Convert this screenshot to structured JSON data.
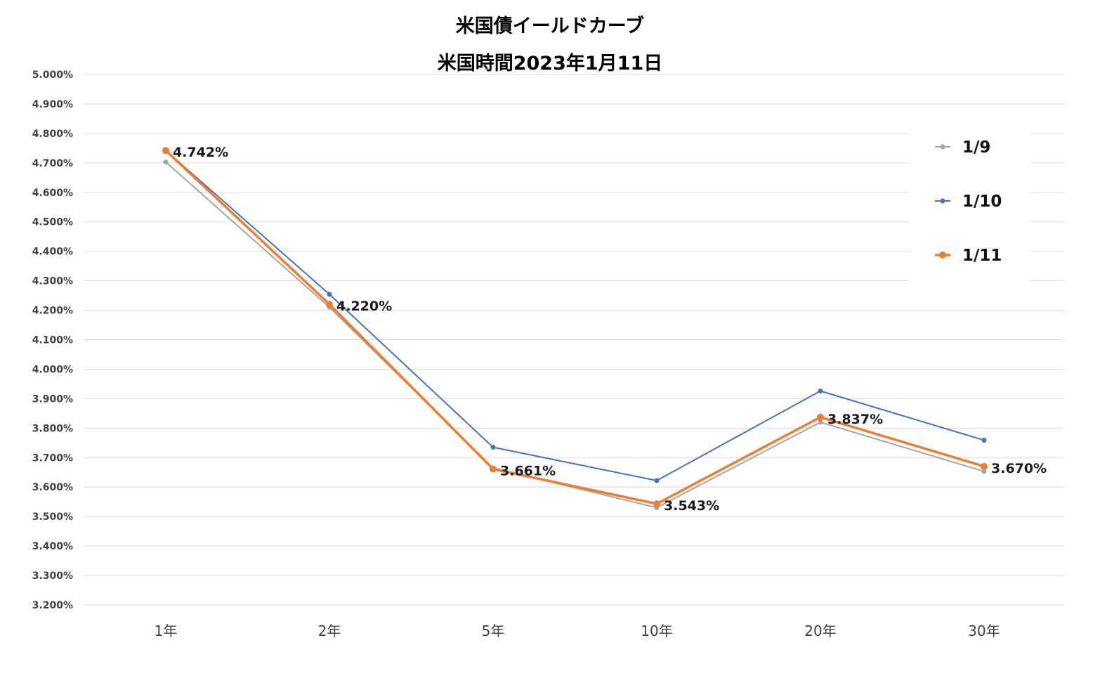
{
  "chart_data": {
    "type": "line",
    "title": "米国債イールドカーブ",
    "subtitle": "米国時間2023年1月11日",
    "categories": [
      "1年",
      "2年",
      "5年",
      "10年",
      "20年",
      "30年"
    ],
    "ylim": [
      3.2,
      5.0
    ],
    "yticks": [
      3.2,
      3.3,
      3.4,
      3.5,
      3.6,
      3.7,
      3.8,
      3.9,
      4.0,
      4.1,
      4.2,
      4.3,
      4.4,
      4.5,
      4.6,
      4.7,
      4.8,
      4.9,
      5.0
    ],
    "ytick_labels": [
      "3.200%",
      "3.300%",
      "3.400%",
      "3.500%",
      "3.600%",
      "3.700%",
      "3.800%",
      "3.900%",
      "4.000%",
      "4.100%",
      "4.200%",
      "4.300%",
      "4.400%",
      "4.500%",
      "4.600%",
      "4.700%",
      "4.800%",
      "4.900%",
      "5.000%"
    ],
    "grid": true,
    "legend_position": "right",
    "series": [
      {
        "name": "1/9",
        "color": "#a5a5a5",
        "values": [
          4.703,
          4.21,
          3.665,
          3.53,
          3.82,
          3.653
        ],
        "emphasis": false
      },
      {
        "name": "1/10",
        "color": "#4472c4",
        "values": [
          4.742,
          4.254,
          3.735,
          3.622,
          3.926,
          3.759
        ],
        "emphasis": false
      },
      {
        "name": "1/11",
        "color": "#ed7d31",
        "values": [
          4.742,
          4.22,
          3.661,
          3.543,
          3.837,
          3.67
        ],
        "emphasis": true
      }
    ],
    "data_labels": [
      "4.742%",
      "4.220%",
      "3.661%",
      "3.543%",
      "3.837%",
      "3.670%"
    ]
  }
}
